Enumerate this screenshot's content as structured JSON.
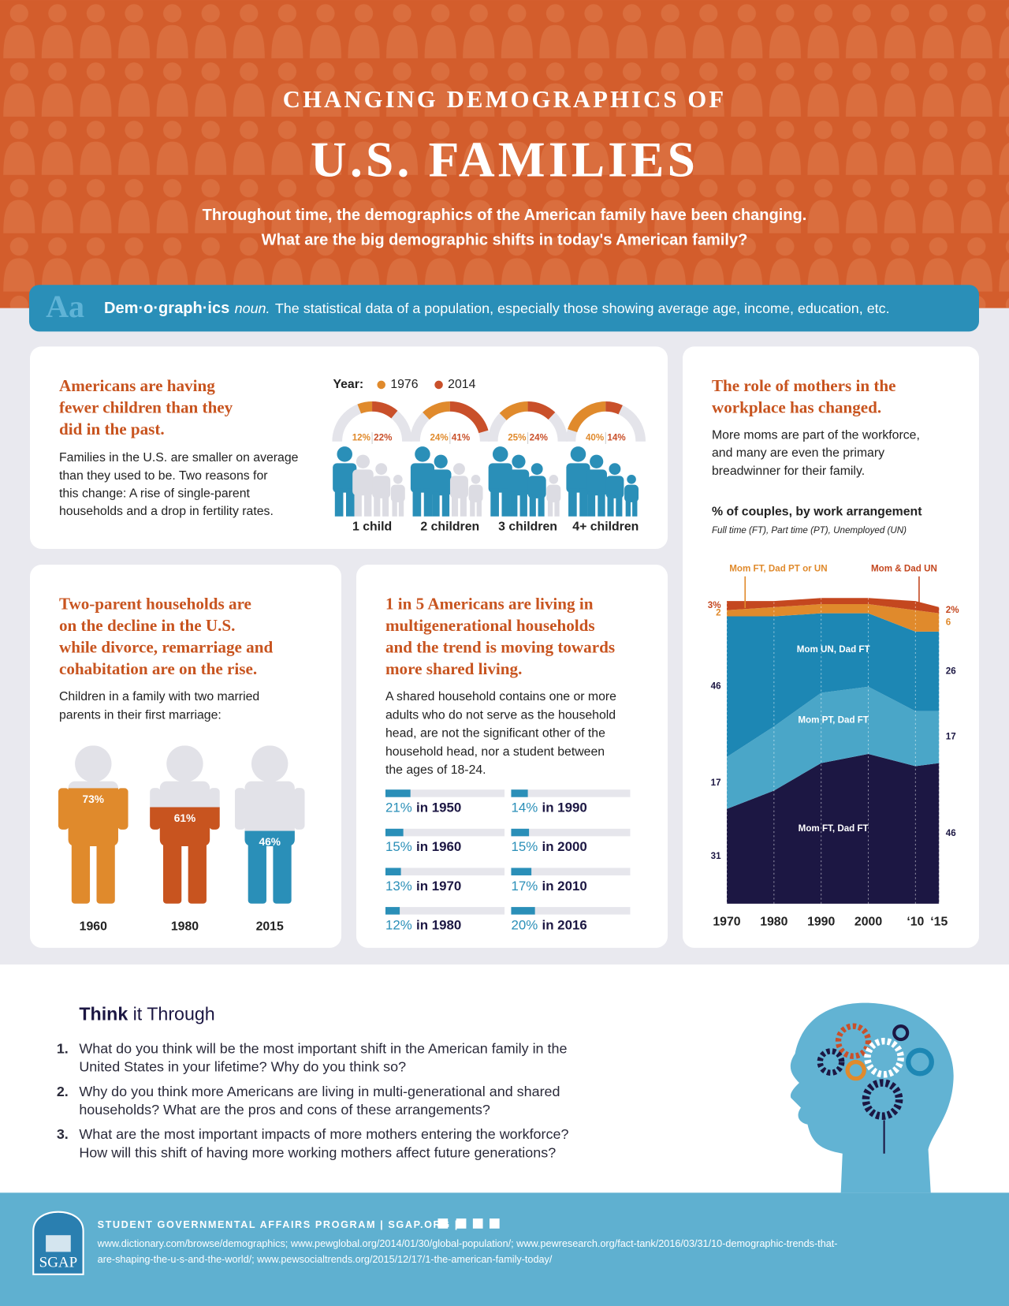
{
  "header": {
    "kicker": "CHANGING DEMOGRAPHICS OF",
    "title": "U.S. FAMILIES",
    "intro": [
      "Throughout time, the demographics of the American family have been changing.",
      "What are the big demographic shifts in today's American family?"
    ]
  },
  "definition": {
    "icon": "Aa",
    "term": "Dem·o·graph·ics",
    "part_of_speech": "noun.",
    "text": "The statistical data of a population, especially those showing average age, income, education, etc."
  },
  "children": {
    "title": [
      "Americans are having",
      "fewer children than they",
      "did in the past."
    ],
    "body": [
      "Families in the U.S. are smaller on average",
      "than they used to be. Two reasons for",
      "this change:  A rise of single-parent",
      "households and a drop in fertility rates."
    ],
    "legend_label": "Year:",
    "series": [
      {
        "name": "1976",
        "color": "#e08a2c"
      },
      {
        "name": "2014",
        "color": "#c9502a"
      }
    ],
    "groups": [
      {
        "label": "1 child",
        "values": [
          12,
          22
        ],
        "value_labels": [
          "12%",
          "22%"
        ]
      },
      {
        "label": "2 children",
        "values": [
          24,
          41
        ],
        "value_labels": [
          "24%",
          "41%"
        ]
      },
      {
        "label": "3 children",
        "values": [
          25,
          24
        ],
        "value_labels": [
          "25%",
          "24%"
        ]
      },
      {
        "label": "4+ children",
        "values": [
          40,
          14
        ],
        "value_labels": [
          "40%",
          "14%"
        ]
      }
    ]
  },
  "two_parent": {
    "title": [
      "Two-parent households are",
      "on the decline in the U.S.",
      "while divorce, remarriage and",
      "cohabitation are on the rise."
    ],
    "body": [
      "Children in a family with two married",
      "parents in their first marriage:"
    ],
    "items": [
      {
        "year": "1960",
        "value": 73,
        "value_label": "73%",
        "color": "#e08a2c"
      },
      {
        "year": "1980",
        "value": 61,
        "value_label": "61%",
        "color": "#c8541f"
      },
      {
        "year": "2015",
        "value": 46,
        "value_label": "46%",
        "color": "#2a8fb8"
      }
    ]
  },
  "multigenerational": {
    "title": [
      "1 in 5 Americans are living in",
      "multigenerational households",
      "and the trend is moving towards",
      "more shared living."
    ],
    "body": [
      "A shared household contains one or more",
      "adults who do not serve as the household",
      "head, are not the significant other of the",
      "household head, nor a student between",
      "the ages of 18-24."
    ],
    "items": [
      {
        "value": 21,
        "value_label": "21%",
        "label": "in 1950"
      },
      {
        "value": 15,
        "value_label": "15%",
        "label": "in 1960"
      },
      {
        "value": 13,
        "value_label": "13%",
        "label": "in 1970"
      },
      {
        "value": 12,
        "value_label": "12%",
        "label": "in 1980"
      },
      {
        "value": 14,
        "value_label": "14%",
        "label": "in 1990"
      },
      {
        "value": 15,
        "value_label": "15%",
        "label": "in 2000"
      },
      {
        "value": 17,
        "value_label": "17%",
        "label": "in 2010"
      },
      {
        "value": 20,
        "value_label": "20%",
        "label": "in 2016"
      }
    ]
  },
  "mothers": {
    "title": [
      "The role of mothers in the",
      "workplace has changed."
    ],
    "body": [
      "More moms are part of the workforce,",
      "and many are even the primary",
      "breadwinner for their family."
    ],
    "chart": {
      "type": "area",
      "stacked": true,
      "title": "% of couples, by work arrangement",
      "subtitle": "Full time (FT), Part time (PT), Unemployed (UN)",
      "x": [
        1970,
        1980,
        1990,
        2000,
        2010,
        2015
      ],
      "xlim": [
        1970,
        2015
      ],
      "ylim": [
        0,
        100
      ],
      "xticks": [
        1970,
        1980,
        1990,
        2000,
        {
          "value": 2010,
          "label": "‘10"
        },
        {
          "value": 2015,
          "label": "‘15"
        }
      ],
      "grid": true,
      "series": [
        {
          "name": "Mom FT, Dad FT",
          "color": "#1c1743",
          "values": [
            31,
            37,
            46,
            49,
            45,
            46
          ]
        },
        {
          "name": "Mom PT, Dad FT",
          "color": "#4aa6c8",
          "values": [
            17,
            21,
            23,
            22,
            18,
            17
          ]
        },
        {
          "name": "Mom UN, Dad FT",
          "color": "#1d87b4",
          "values": [
            46,
            36,
            26,
            24,
            26,
            26
          ]
        },
        {
          "name": "Mom FT, Dad PT or UN",
          "color": "#e08a2c",
          "values": [
            2,
            3,
            3,
            3,
            7,
            6
          ]
        },
        {
          "name": "Mom & Dad UN",
          "color": "#c4471f",
          "values": [
            3,
            2,
            2,
            2,
            3,
            2
          ],
          "value_labels": [
            "3%",
            null,
            null,
            null,
            null,
            "2%"
          ]
        }
      ]
    }
  },
  "think": {
    "title_bold": "Think",
    "title_rest": "it Through",
    "questions": [
      {
        "number": "1.",
        "lines": [
          "What do you think will be the most important shift in the American family in the",
          "United States in your lifetime? Why do you think so?"
        ]
      },
      {
        "number": "2.",
        "lines": [
          "Why do you think more Americans are living in multi-generational and shared",
          "households? What are the pros and cons of these arrangements?"
        ]
      },
      {
        "number": "3.",
        "lines": [
          "What are the most important impacts of more mothers entering the workforce?",
          "How will this shift of having more working mothers affect future generations?"
        ]
      }
    ]
  },
  "footer": {
    "logo_text": "SGAP",
    "org": "STUDENT GOVERNMENTAL AFFAIRS PROGRAM | SGAP.ORG |",
    "sources": [
      "www.dictionary.com/browse/demographics; www.pewglobal.org/2014/01/30/global-population/; www.pewresearch.org/fact-tank/2016/03/31/10-demographic-trends-that-",
      "are-shaping-the-u-s-and-the-world/; www.pewsocialtrends.org/2015/12/17/1-the-american-family-today/"
    ]
  }
}
